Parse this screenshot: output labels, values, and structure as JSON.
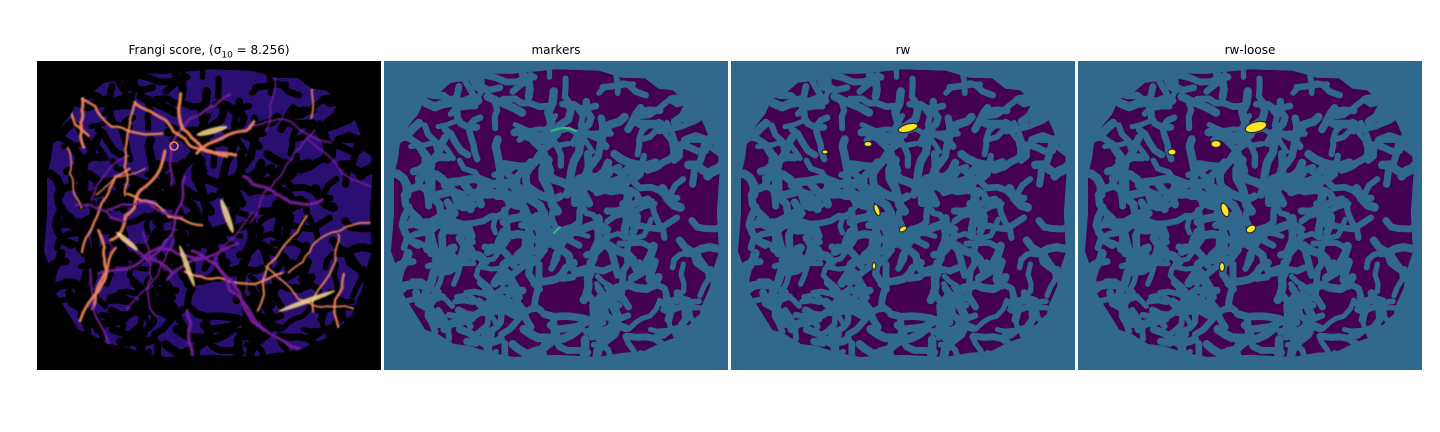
{
  "panels": [
    {
      "title_text": "Frangi score, ",
      "title_math_prefix": "(σ",
      "title_math_sub": "10",
      "title_math_suffix": " = 8.256)",
      "colormap": "magma"
    },
    {
      "title": "markers",
      "colormap": "viridis"
    },
    {
      "title": "rw",
      "colormap": "viridis"
    },
    {
      "title": "rw-loose",
      "colormap": "viridis"
    }
  ],
  "colors": {
    "frangi_background": "#000000",
    "frangi_tissue": "#2a0f73",
    "frangi_vessel_low": "#7a1f9e",
    "frangi_vessel_high": "#f78a5a",
    "frangi_vessel_peak": "#fcdc8c",
    "label_background": "#31688e",
    "label_tissue": "#440154",
    "label_marker": "#35b779",
    "label_vessel": "#fde725"
  }
}
